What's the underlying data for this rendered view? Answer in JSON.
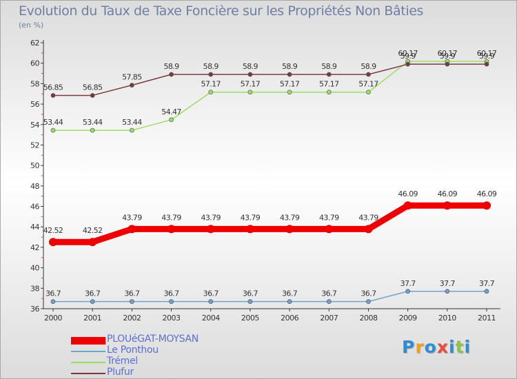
{
  "title": "Evolution du Taux de Taxe Foncière sur les Propriétés Non Bâties",
  "subtitle": "(en %)",
  "logo": {
    "text": "Proxiti",
    "colors": [
      "#2a8fd8",
      "#f0a020",
      "#2a8fd8",
      "#e84c3c",
      "#2a8fd8",
      "#8cc63f",
      "#2a8fd8"
    ]
  },
  "chart_data": {
    "type": "line",
    "title": "Evolution du Taux de Taxe Foncière sur les Propriétés Non Bâties",
    "ylabel": "(en %)",
    "xlabel": "",
    "ylim": [
      36,
      62
    ],
    "yticks": [
      "36",
      "38",
      "40",
      "42",
      "44",
      "46",
      "48",
      "50",
      "52",
      "54",
      "56",
      "58",
      "60",
      "62"
    ],
    "categories": [
      "2000",
      "2001",
      "2002",
      "2003",
      "2004",
      "2005",
      "2006",
      "2007",
      "2008",
      "2009",
      "2010",
      "2011"
    ],
    "grid": false,
    "legend": "bottom-left",
    "series": [
      {
        "name": "PLOUéGAT-MOYSAN",
        "color": "#ee0000",
        "labels": [
          "42.52",
          "42.52",
          "43.79",
          "43.79",
          "43.79",
          "43.79",
          "43.79",
          "43.79",
          "43.79",
          "46.09",
          "46.09",
          "46.09"
        ],
        "values": [
          42.52,
          42.52,
          43.79,
          43.79,
          43.79,
          43.79,
          43.79,
          43.79,
          43.79,
          46.09,
          46.09,
          46.09
        ]
      },
      {
        "name": "Le Ponthou",
        "color": "#6ea3cc",
        "labels": [
          "36.7",
          "36.7",
          "36.7",
          "36.7",
          "36.7",
          "36.7",
          "36.7",
          "36.7",
          "36.7",
          "37.7",
          "37.7",
          "37.7"
        ],
        "values": [
          36.7,
          36.7,
          36.7,
          36.7,
          36.7,
          36.7,
          36.7,
          36.7,
          36.7,
          37.7,
          37.7,
          37.7
        ]
      },
      {
        "name": "Trémel",
        "color": "#99e060",
        "labels": [
          "53.44",
          "53.44",
          "53.44",
          "54.47",
          "57.17",
          "57.17",
          "57.17",
          "57.17",
          "57.17",
          "60.17",
          "60.17",
          "60.17"
        ],
        "values": [
          53.44,
          53.44,
          53.44,
          54.47,
          57.17,
          57.17,
          57.17,
          57.17,
          57.17,
          60.17,
          60.17,
          60.17
        ]
      },
      {
        "name": "Plufur",
        "color": "#7a3a3a",
        "labels": [
          "56.85",
          "56.85",
          "57.85",
          "58.9",
          "58.9",
          "58.9",
          "58.9",
          "58.9",
          "58.9",
          "59.9",
          "59.9",
          "59.9"
        ],
        "values": [
          56.85,
          56.85,
          57.85,
          58.9,
          58.9,
          58.9,
          58.9,
          58.9,
          58.9,
          59.9,
          59.9,
          59.9
        ]
      }
    ]
  }
}
